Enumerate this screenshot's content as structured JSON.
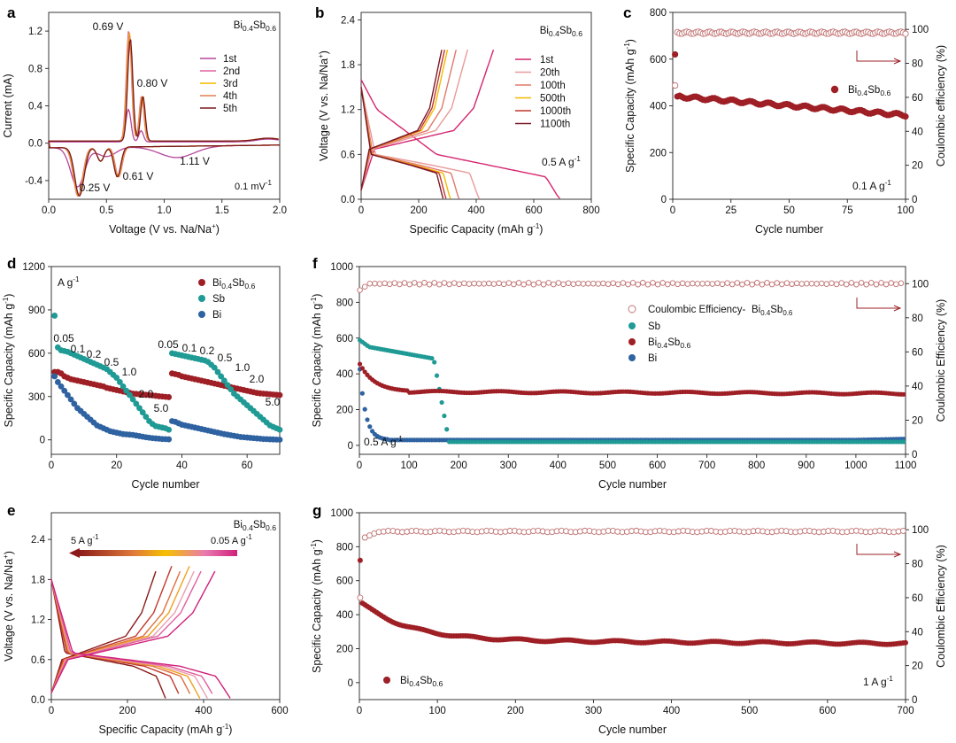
{
  "chart_data": [
    {
      "id": "a",
      "panel_label": "a",
      "type": "line",
      "title": "Bi0.4Sb0.6",
      "xlabel": "Voltage (V vs. Na/Na+)",
      "ylabel": "Current (mA)",
      "xlim": [
        0,
        2.0
      ],
      "ylim": [
        -0.6,
        1.4
      ],
      "xticks": [
        "0.0",
        "0.5",
        "1.0",
        "1.5",
        "2.0"
      ],
      "yticks": [
        "-0.4",
        "0.0",
        "0.4",
        "0.8",
        "1.2"
      ],
      "rate_label": "0.1 mV-1",
      "annotations": [
        "0.69 V",
        "0.80 V",
        "1.11 V",
        "0.25 V",
        "0.61 V"
      ],
      "series": [
        {
          "name": "1st",
          "color": "#b5479a"
        },
        {
          "name": "2nd",
          "color": "#e0609e"
        },
        {
          "name": "3rd",
          "color": "#f0b800"
        },
        {
          "name": "4th",
          "color": "#e08050"
        },
        {
          "name": "5th",
          "color": "#7a1a1a"
        }
      ]
    },
    {
      "id": "b",
      "panel_label": "b",
      "type": "line",
      "title": "Bi0.4Sb0.6",
      "xlabel": "Specific Capacity (mAh g-1)",
      "ylabel": "Voltage (V vs. Na/Na+)",
      "xlim": [
        0,
        800
      ],
      "ylim": [
        0,
        2.5
      ],
      "xticks": [
        "0",
        "200",
        "400",
        "600",
        "800"
      ],
      "yticks": [
        "0.0",
        "0.6",
        "1.2",
        "1.8",
        "2.4"
      ],
      "rate_label": "0.5 A g-1",
      "series": [
        {
          "name": "1st",
          "color": "#d6246e",
          "discharge_capacity": 690,
          "charge_capacity": 460
        },
        {
          "name": "20th",
          "color": "#e89a9a",
          "discharge_capacity": 410,
          "charge_capacity": 370
        },
        {
          "name": "100th",
          "color": "#e07a6a",
          "discharge_capacity": 340,
          "charge_capacity": 330
        },
        {
          "name": "500th",
          "color": "#f5b800",
          "discharge_capacity": 310,
          "charge_capacity": 300
        },
        {
          "name": "1000th",
          "color": "#c0392b",
          "discharge_capacity": 295,
          "charge_capacity": 290
        },
        {
          "name": "1100th",
          "color": "#7a1a2a",
          "discharge_capacity": 285,
          "charge_capacity": 280
        }
      ]
    },
    {
      "id": "c",
      "panel_label": "c",
      "type": "scatter",
      "xlabel": "Cycle number",
      "ylabel": "Specific Capacity (mAh g-1)",
      "y2label": "Coulombic efficiency (%)",
      "xlim": [
        0,
        100
      ],
      "ylim": [
        0,
        800
      ],
      "y2lim": [
        0,
        110
      ],
      "xticks": [
        "0",
        "25",
        "50",
        "75",
        "100"
      ],
      "yticks": [
        "0",
        "200",
        "400",
        "600",
        "800"
      ],
      "y2ticks": [
        "0",
        "20",
        "40",
        "60",
        "80",
        "100"
      ],
      "rate_label": "0.1 A g-1",
      "legend": "Bi0.4Sb0.6",
      "series": [
        {
          "name": "Capacity",
          "color": "#9e1f25",
          "first_value": 620,
          "start": 440,
          "end": 360
        },
        {
          "name": "Coulombic efficiency",
          "color": "#c07070",
          "first_value": 67,
          "value": 98
        }
      ]
    },
    {
      "id": "d",
      "panel_label": "d",
      "type": "scatter",
      "xlabel": "Cycle number",
      "ylabel": "Specific Capacity (mAh g-1)",
      "xlim": [
        0,
        70
      ],
      "ylim": [
        -100,
        1200
      ],
      "xticks": [
        "0",
        "20",
        "40",
        "60"
      ],
      "yticks": [
        "0",
        "300",
        "600",
        "900",
        "1200"
      ],
      "unit_label": "A g-1",
      "rate_labels": [
        "0.05",
        "0.1",
        "0.2",
        "0.5",
        "1.0",
        "2.0",
        "5.0",
        "0.05",
        "0.1",
        "0.2",
        "0.5",
        "1.0",
        "2.0",
        "5.0"
      ],
      "series": [
        {
          "name": "Bi0.4Sb0.6",
          "color": "#9e1f25",
          "values": [
            470,
            470,
            460,
            440,
            430,
            420,
            415,
            410,
            405,
            400,
            395,
            390,
            385,
            380,
            375,
            370,
            360,
            355,
            350,
            345,
            340,
            335,
            330,
            325,
            320,
            318,
            316,
            314,
            312,
            310,
            308,
            305,
            302,
            300,
            298,
            296,
            460,
            455,
            450,
            440,
            435,
            430,
            425,
            420,
            415,
            410,
            405,
            400,
            395,
            390,
            385,
            380,
            375,
            370,
            365,
            360,
            355,
            350,
            345,
            340,
            335,
            330,
            325,
            322,
            320,
            318,
            316,
            314,
            312,
            310
          ]
        },
        {
          "name": "Sb",
          "color": "#1f9a95",
          "values": [
            860,
            640,
            620,
            615,
            610,
            600,
            590,
            580,
            570,
            560,
            550,
            540,
            530,
            520,
            510,
            500,
            490,
            470,
            450,
            430,
            400,
            370,
            340,
            310,
            280,
            250,
            220,
            190,
            160,
            130,
            110,
            95,
            90,
            85,
            80,
            70,
            600,
            595,
            590,
            585,
            580,
            575,
            570,
            565,
            560,
            555,
            550,
            540,
            520,
            500,
            470,
            440,
            410,
            380,
            350,
            320,
            300,
            280,
            260,
            240,
            220,
            200,
            180,
            160,
            140,
            120,
            100,
            90,
            80,
            70
          ]
        },
        {
          "name": "Bi",
          "color": "#2e62a0",
          "values": [
            440,
            400,
            370,
            340,
            310,
            280,
            250,
            220,
            200,
            180,
            160,
            140,
            120,
            100,
            90,
            80,
            70,
            60,
            55,
            50,
            45,
            40,
            38,
            36,
            34,
            30,
            26,
            22,
            18,
            15,
            12,
            10,
            8,
            6,
            5,
            4,
            130,
            125,
            115,
            105,
            100,
            95,
            90,
            85,
            80,
            75,
            70,
            65,
            60,
            55,
            50,
            45,
            40,
            36,
            32,
            28,
            24,
            20,
            18,
            16,
            14,
            12,
            10,
            8,
            6,
            5,
            4,
            3,
            2,
            1
          ]
        }
      ]
    },
    {
      "id": "e",
      "panel_label": "e",
      "type": "line",
      "title": "Bi0.4Sb0.6",
      "xlabel": "Specific Capacity (mAh g-1)",
      "ylabel": "Voltage (V vs. Na/Na+)",
      "xlim": [
        0,
        600
      ],
      "ylim": [
        0,
        2.8
      ],
      "xticks": [
        "0",
        "200",
        "400",
        "600"
      ],
      "yticks": [
        "0.0",
        "0.6",
        "1.2",
        "1.8",
        "2.4"
      ],
      "gradient_left": "5 A g-1",
      "gradient_right": "0.05 A g-1",
      "series": [
        {
          "rate": "5",
          "color": "#8b1a1a",
          "capacity": 300
        },
        {
          "rate": "2",
          "color": "#c0392b",
          "capacity": 340
        },
        {
          "rate": "1",
          "color": "#e07040",
          "capacity": 370
        },
        {
          "rate": "0.5",
          "color": "#f0a020",
          "capacity": 390
        },
        {
          "rate": "0.2",
          "color": "#e8a0b0",
          "capacity": 410
        },
        {
          "rate": "0.1",
          "color": "#e060a0",
          "capacity": 430
        },
        {
          "rate": "0.05",
          "color": "#d0207a",
          "capacity": 470
        }
      ]
    },
    {
      "id": "f",
      "panel_label": "f",
      "type": "scatter",
      "xlabel": "Cycle number",
      "ylabel": "Specific Capacity (mAh g-1)",
      "y2label": "Coulombic Efficiency (%)",
      "xlim": [
        0,
        1100
      ],
      "ylim": [
        -50,
        1000
      ],
      "y2lim": [
        0,
        110
      ],
      "xticks": [
        "0",
        "100",
        "200",
        "300",
        "400",
        "500",
        "600",
        "700",
        "800",
        "900",
        "1000",
        "1100"
      ],
      "yticks": [
        "0",
        "200",
        "400",
        "600",
        "800",
        "1000"
      ],
      "y2ticks": [
        "0",
        "20",
        "40",
        "60",
        "80",
        "100"
      ],
      "rate_label": "0.5 A g-1",
      "series": [
        {
          "name": "Coulombic Efficiency-Bi0.4Sb0.6",
          "color": "#c07070",
          "value": 100
        },
        {
          "name": "Sb",
          "color": "#1f9a95",
          "plateau": 550,
          "fade_cycle": 180,
          "end": 20
        },
        {
          "name": "Bi0.4Sb0.6",
          "color": "#9e1f25",
          "start": 460,
          "steady": 300,
          "end": 290
        },
        {
          "name": "Bi",
          "color": "#2e62a0",
          "start": 430,
          "steady": 30,
          "end": 30
        }
      ]
    },
    {
      "id": "g",
      "panel_label": "g",
      "type": "scatter",
      "xlabel": "Cycle number",
      "ylabel": "Specific Capacity (mAh g-1)",
      "y2label": "Coulombic Efficiency (%)",
      "xlim": [
        0,
        700
      ],
      "ylim": [
        -100,
        1000
      ],
      "y2lim": [
        0,
        110
      ],
      "xticks": [
        "0",
        "100",
        "200",
        "300",
        "400",
        "500",
        "600",
        "700"
      ],
      "yticks": [
        "0",
        "200",
        "400",
        "600",
        "800",
        "1000"
      ],
      "y2ticks": [
        "0",
        "20",
        "40",
        "60",
        "80",
        "100"
      ],
      "rate_label": "1 A g-1",
      "legend": "Bi0.4Sb0.6",
      "series": [
        {
          "name": "Capacity",
          "color": "#9e1f25",
          "first_value": 720,
          "start": 480,
          "end": 250
        },
        {
          "name": "Coulombic Efficiency",
          "color": "#c07070",
          "first_value": 60,
          "value": 99
        }
      ]
    }
  ]
}
